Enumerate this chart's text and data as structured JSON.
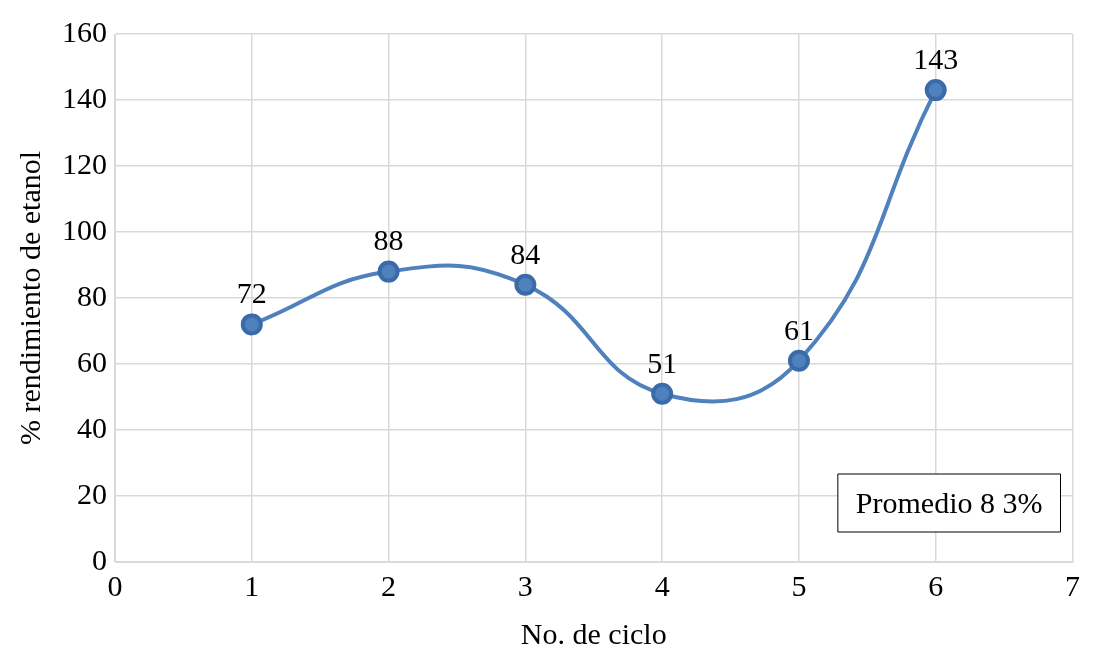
{
  "chart_data": {
    "type": "line",
    "xlabel": "No. de ciclo",
    "ylabel": "% rendimiento de etanol",
    "x": [
      1,
      2,
      3,
      4,
      5,
      6
    ],
    "series": [
      {
        "color": "#4f81bd",
        "values": [
          72,
          88,
          84,
          51,
          61,
          143
        ]
      }
    ],
    "xlim": [
      0,
      7
    ],
    "xticks": [
      0,
      1,
      2,
      3,
      4,
      5,
      6,
      7
    ],
    "ylim": [
      0,
      160
    ],
    "yticks": [
      0,
      20,
      40,
      60,
      80,
      100,
      120,
      140,
      160
    ],
    "grid": true,
    "legend": false,
    "marker": "circle",
    "line_style": "solid",
    "data_labels": true,
    "annotations": [
      "Promedio 8 3%"
    ]
  }
}
